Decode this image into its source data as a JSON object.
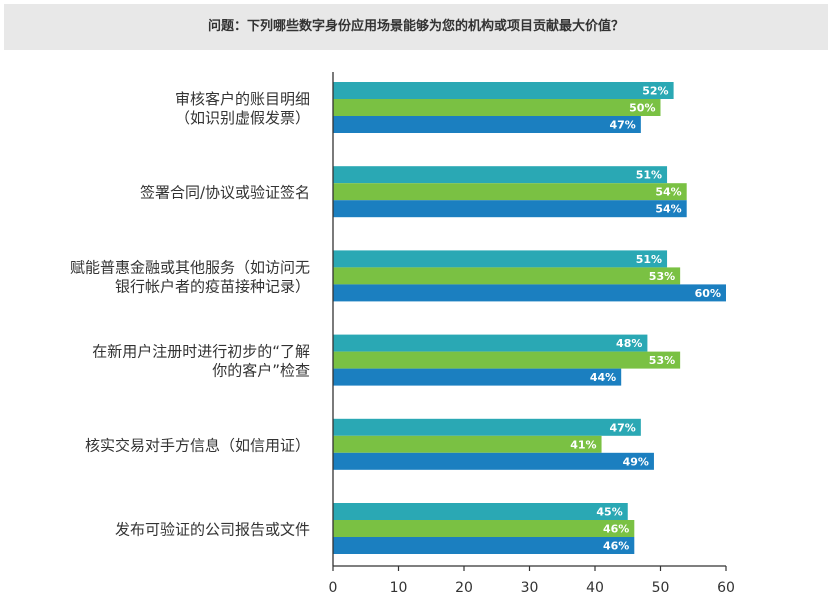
{
  "chart_data": {
    "type": "bar",
    "orientation": "horizontal",
    "title": "问题：下列哪些数字身份应用场景能够为您的机构或项目贡献最大价值？",
    "xlabel": "",
    "ylabel": "",
    "xlim": [
      0,
      60
    ],
    "xticks": [
      0,
      10,
      20,
      30,
      40,
      50,
      60
    ],
    "grid": false,
    "legend": "none",
    "value_suffix": "%",
    "colors": [
      "#2aa8b4",
      "#7ac143",
      "#1b7fc0"
    ],
    "categories": [
      [
        "审核客户的账目明细",
        "（如识别虚假发票）"
      ],
      [
        "签署合同/协议或验证签名"
      ],
      [
        "赋能普惠金融或其他服务（如访问无",
        "银行帐户者的疫苗接种记录）"
      ],
      [
        "在新用户注册时进行初步的“了解",
        "你的客户”检查"
      ],
      [
        "核实交易对手方信息（如信用证）"
      ],
      [
        "发布可验证的公司报告或文件"
      ]
    ],
    "series": [
      {
        "values": [
          52,
          51,
          51,
          48,
          47,
          45
        ]
      },
      {
        "values": [
          50,
          54,
          53,
          53,
          41,
          46
        ]
      },
      {
        "values": [
          47,
          54,
          60,
          44,
          49,
          46
        ]
      }
    ]
  }
}
